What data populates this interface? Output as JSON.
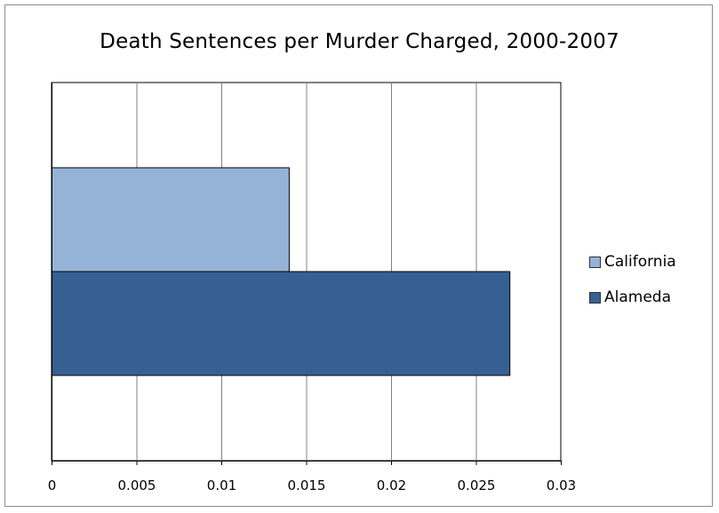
{
  "chart_data": {
    "type": "bar",
    "orientation": "horizontal",
    "title": "Death Sentences per Murder Charged, 2000-2007",
    "xlabel": "",
    "ylabel": "",
    "xlim": [
      0,
      0.03
    ],
    "x_ticks": [
      "0",
      "0.005",
      "0.01",
      "0.015",
      "0.02",
      "0.025",
      "0.03"
    ],
    "x_tick_values": [
      0,
      0.005,
      0.01,
      0.015,
      0.02,
      0.025,
      0.03
    ],
    "grid": "vertical",
    "legend_position": "right",
    "series": [
      {
        "name": "California",
        "values": [
          0.014
        ],
        "color": "#95b3d7"
      },
      {
        "name": "Alameda",
        "values": [
          0.027
        ],
        "color": "#366092"
      }
    ]
  }
}
